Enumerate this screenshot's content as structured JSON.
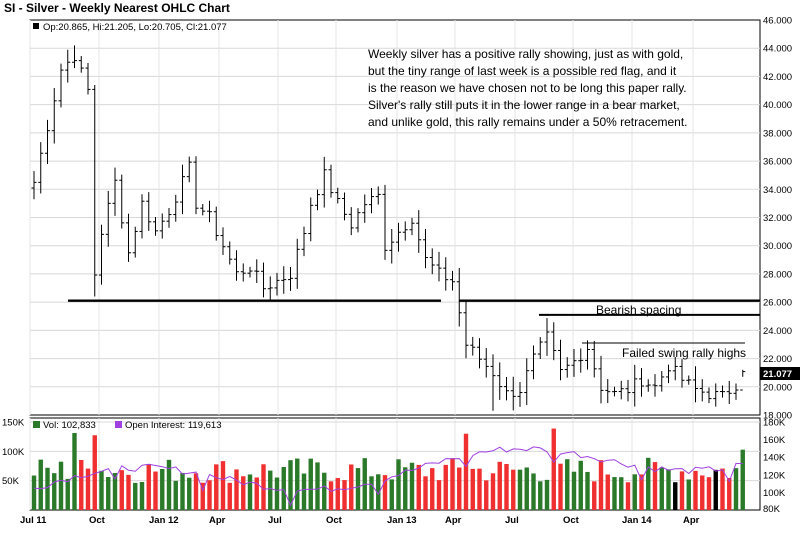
{
  "chart_data": {
    "type": "ohlc",
    "title": "SI - Silver - Weekly Nearest OHLC Chart",
    "last_bar_info": "Op:20.865, Hi:21.205, Lo:20.705, Cl:21.077",
    "last_price_label": "21.077",
    "price_axis": {
      "min": 18,
      "max": 46,
      "ticks": [
        "46.000",
        "44.000",
        "42.000",
        "40.000",
        "38.000",
        "36.000",
        "34.000",
        "32.000",
        "30.000",
        "28.000",
        "26.000",
        "24.000",
        "22.000",
        "20.000",
        "18.000"
      ]
    },
    "x_axis": {
      "ticks": [
        "Jul 11",
        "Oct",
        "Jan 12",
        "Apr",
        "Jul",
        "Oct",
        "Jan 13",
        "Apr",
        "Jul",
        "Oct",
        "Jan 14",
        "Apr"
      ]
    },
    "note_lines": [
      "Weekly silver has a positive rally showing, just as with gold,",
      "but the tiny range of last week is a possible red flag, and it",
      "is the reason we have chosen not to be long this paper rally.",
      "Silver's rally still puts it in the lower range in a bear market,",
      "and unlike gold, this rally remains under a 50% retracement."
    ],
    "annotations": [
      {
        "text": "Bearish spacing",
        "price": 25.0
      },
      {
        "text": "Failed swing rally highs",
        "price": 22.3
      }
    ],
    "support_lines": [
      {
        "price": 26.1,
        "weeks": [
          0,
          61
        ]
      },
      {
        "price": 26.1,
        "weeks": [
          63,
          105
        ]
      },
      {
        "price": 25.1,
        "weeks": [
          75,
          105
        ]
      },
      {
        "price": 23.1,
        "weeks": [
          80,
          103
        ]
      }
    ],
    "price_anchors": [
      [
        0,
        34.5
      ],
      [
        2,
        38.5
      ],
      [
        4,
        42.5
      ],
      [
        6,
        43.5
      ],
      [
        8,
        41
      ],
      [
        9,
        28
      ],
      [
        10,
        31
      ],
      [
        12,
        34.5
      ],
      [
        14,
        29.5
      ],
      [
        16,
        33
      ],
      [
        18,
        31
      ],
      [
        20,
        32.5
      ],
      [
        22,
        34.5
      ],
      [
        23,
        35.5
      ],
      [
        24,
        33
      ],
      [
        26,
        32
      ],
      [
        28,
        30
      ],
      [
        30,
        28
      ],
      [
        32,
        28.5
      ],
      [
        34,
        27
      ],
      [
        36,
        27.5
      ],
      [
        38,
        28
      ],
      [
        40,
        31
      ],
      [
        41,
        33
      ],
      [
        43,
        35
      ],
      [
        45,
        33
      ],
      [
        47,
        31.5
      ],
      [
        49,
        33
      ],
      [
        51,
        33.5
      ],
      [
        52,
        30
      ],
      [
        54,
        31
      ],
      [
        56,
        32
      ],
      [
        58,
        29
      ],
      [
        60,
        28
      ],
      [
        62,
        27.5
      ],
      [
        64,
        23
      ],
      [
        66,
        22
      ],
      [
        68,
        21
      ],
      [
        70,
        19.5
      ],
      [
        72,
        19.8
      ],
      [
        74,
        22
      ],
      [
        76,
        23.5
      ],
      [
        78,
        21
      ],
      [
        80,
        21.8
      ],
      [
        82,
        22.8
      ],
      [
        84,
        20
      ],
      [
        86,
        19.5
      ],
      [
        88,
        19.8
      ],
      [
        90,
        20.5
      ],
      [
        92,
        20
      ],
      [
        94,
        21.5
      ],
      [
        96,
        20.5
      ],
      [
        98,
        19.8
      ],
      [
        100,
        19.5
      ],
      [
        102,
        19.3
      ],
      [
        104,
        20.2
      ],
      [
        105,
        21.0
      ]
    ],
    "volume_panel": {
      "vol_label": "Vol: 102,833",
      "oi_label": "Open Interest: 119,613",
      "vol_axis": {
        "min": 0,
        "max": 150000,
        "ticks": [
          "150K",
          "100K",
          "50K"
        ]
      },
      "oi_axis": {
        "min": 80000,
        "max": 180000,
        "ticks": [
          "180K",
          "160K",
          "140K",
          "120K",
          "100K",
          "80K"
        ]
      },
      "vol_colors": {
        "up": "#2a7a2a",
        "down": "#f03030",
        "flat": "#000000"
      },
      "oi_color": "#a040e0"
    },
    "grid": true
  }
}
